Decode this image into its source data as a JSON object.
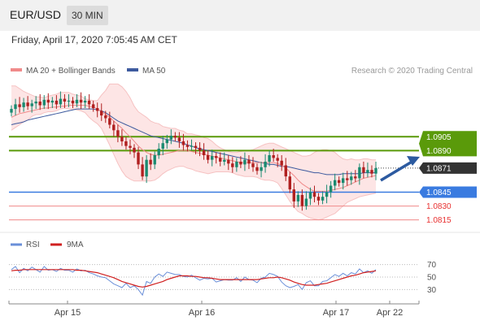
{
  "header": {
    "pair": "EUR/USD",
    "timeframe": "30 MIN"
  },
  "datetime": "Friday, April 17, 2020 7:05:45 AM CET",
  "legend_main": {
    "ma20": "MA 20 + Bollinger Bands",
    "ma50": "MA 50"
  },
  "credit": "Research © 2020 Trading Central",
  "legend_rsi": {
    "rsi": "RSI",
    "ma": "9MA"
  },
  "colors": {
    "resistance": "#5a9a0a",
    "support": "#3a7be0",
    "target": "#e83030",
    "price_tag": "#333333",
    "bollinger": "#fbd0d0",
    "ma20": "#f08a8a",
    "ma50": "#3d5a9e",
    "up": "#1a8a70",
    "down": "#b02020",
    "rsi": "#6a8fd8",
    "rsi_ma": "#d02020",
    "arrow": "#2c5aa0"
  },
  "chart_data": [
    {
      "type": "candlestick",
      "xlabel": "",
      "ylabel": "",
      "x_ticks": [
        "Apr 15",
        "Apr 16",
        "Apr 17",
        "Apr 22"
      ],
      "y_range": [
        1.0805,
        1.0965
      ],
      "close": [
        1.0935,
        1.094,
        1.0937,
        1.0942,
        1.0938,
        1.0941,
        1.0943,
        1.0939,
        1.0945,
        1.0942,
        1.0944,
        1.094,
        1.0946,
        1.0943,
        1.0944,
        1.0941,
        1.0945,
        1.0942,
        1.0944,
        1.094,
        1.0936,
        1.0933,
        1.0928,
        1.0925,
        1.0918,
        1.0912,
        1.0905,
        1.09,
        1.0895,
        1.0893,
        1.0888,
        1.0875,
        1.0862,
        1.088,
        1.0875,
        1.0885,
        1.0892,
        1.0898,
        1.0902,
        1.0906,
        1.0904,
        1.09,
        1.0896,
        1.0894,
        1.0895,
        1.0893,
        1.089,
        1.0885,
        1.088,
        1.0884,
        1.0882,
        1.0878,
        1.088,
        1.0876,
        1.0872,
        1.0878,
        1.0875,
        1.088,
        1.0876,
        1.0872,
        1.0868,
        1.0872,
        1.0878,
        1.0885,
        1.0882,
        1.0879,
        1.0874,
        1.0862,
        1.0848,
        1.0835,
        1.0842,
        1.083,
        1.0838,
        1.0845,
        1.084,
        1.0836,
        1.084,
        1.0845,
        1.0852,
        1.0858,
        1.0855,
        1.086,
        1.0858,
        1.0862,
        1.086,
        1.0872,
        1.0866,
        1.0869,
        1.0865,
        1.0871
      ],
      "indicators": {
        "bollinger_upper": [
          1.096,
          1.096,
          1.0957,
          1.0954,
          1.0952,
          1.095,
          1.0948,
          1.0948,
          1.0947,
          1.0949,
          1.095,
          1.0951,
          1.0953,
          1.0953,
          1.0953,
          1.0951,
          1.095,
          1.0949,
          1.0946,
          1.0945,
          1.0944,
          1.0944,
          1.095,
          1.0955,
          1.0962,
          1.0962,
          1.0962,
          1.0959,
          1.0954,
          1.0947,
          1.0938,
          1.0932,
          1.0929,
          1.0926,
          1.0922,
          1.092,
          1.0919,
          1.0916,
          1.0915,
          1.0914,
          1.0914,
          1.0912,
          1.0911,
          1.0908,
          1.0908,
          1.0907,
          1.0906,
          1.0904,
          1.0903,
          1.09,
          1.0896,
          1.0893,
          1.0891,
          1.0889,
          1.0888,
          1.0888,
          1.0889,
          1.089,
          1.089,
          1.0891,
          1.0893,
          1.0895,
          1.0897,
          1.0898,
          1.0898,
          1.0896,
          1.0894,
          1.0892,
          1.089,
          1.0888,
          1.0886,
          1.0884,
          1.0884,
          1.0885,
          1.0888,
          1.089,
          1.0891,
          1.0891,
          1.089,
          1.0888,
          1.0884,
          1.0881,
          1.088,
          1.0881,
          1.088,
          1.088,
          1.0881,
          1.0881,
          1.088,
          1.088
        ],
        "bollinger_lower": [
          1.0912,
          1.0915,
          1.0918,
          1.0921,
          1.0923,
          1.0927,
          1.0929,
          1.0929,
          1.0931,
          1.0932,
          1.0932,
          1.0933,
          1.0935,
          1.0936,
          1.0935,
          1.0935,
          1.0934,
          1.0933,
          1.0931,
          1.0926,
          1.0922,
          1.0919,
          1.0914,
          1.0905,
          1.0896,
          1.0886,
          1.0876,
          1.0868,
          1.0862,
          1.0859,
          1.0857,
          1.0857,
          1.0857,
          1.0857,
          1.0857,
          1.0858,
          1.0861,
          1.0865,
          1.0868,
          1.087,
          1.0872,
          1.0873,
          1.0873,
          1.0871,
          1.087,
          1.0868,
          1.0867,
          1.0866,
          1.0865,
          1.0866,
          1.0867,
          1.0867,
          1.0867,
          1.0867,
          1.0866,
          1.0864,
          1.0863,
          1.0862,
          1.0862,
          1.0862,
          1.0861,
          1.0859,
          1.0858,
          1.0858,
          1.0857,
          1.0855,
          1.0849,
          1.0842,
          1.0835,
          1.0829,
          1.0824,
          1.0822,
          1.0819,
          1.0817,
          1.0816,
          1.0815,
          1.0816,
          1.0818,
          1.082,
          1.0822,
          1.0826,
          1.083,
          1.0834,
          1.0836,
          1.0838,
          1.084,
          1.0841,
          1.0842,
          1.0843,
          1.0844
        ],
        "ma20": [
          1.0926,
          1.0928,
          1.093,
          1.0931,
          1.0932,
          1.0933,
          1.0934,
          1.0935,
          1.0936,
          1.0936,
          1.0937,
          1.0937,
          1.0938,
          1.0938,
          1.0939,
          1.0939,
          1.0939,
          1.0939,
          1.0939,
          1.0938,
          1.0937,
          1.0935,
          1.0932,
          1.0929,
          1.0926,
          1.0922,
          1.0918,
          1.0914,
          1.0909,
          1.0905,
          1.09,
          1.0895,
          1.0891,
          1.0888,
          1.0886,
          1.0885,
          1.0885,
          1.0886,
          1.0887,
          1.0888,
          1.0889,
          1.089,
          1.089,
          1.089,
          1.0889,
          1.0888,
          1.0887,
          1.0886,
          1.0885,
          1.0884,
          1.0883,
          1.0882,
          1.0881,
          1.088,
          1.0879,
          1.0878,
          1.0877,
          1.0877,
          1.0877,
          1.0877,
          1.0877,
          1.0877,
          1.0877,
          1.0877,
          1.0877,
          1.0876,
          1.0874,
          1.0871,
          1.0867,
          1.0863,
          1.0858,
          1.0854,
          1.0851,
          1.0848,
          1.0846,
          1.0846,
          1.0846,
          1.0846,
          1.0847,
          1.0848,
          1.0849,
          1.085,
          1.0852,
          1.0854,
          1.0856,
          1.0858,
          1.086,
          1.0861,
          1.0862,
          1.0863
        ],
        "ma50": [
          1.0918,
          1.0919,
          1.092,
          1.0921,
          1.0923,
          1.0924,
          1.0925,
          1.0926,
          1.0927,
          1.0928,
          1.0929,
          1.093,
          1.0931,
          1.0932,
          1.0933,
          1.0934,
          1.0935,
          1.0935,
          1.0935,
          1.0935,
          1.0935,
          1.0934,
          1.0933,
          1.0931,
          1.0928,
          1.0925,
          1.0922,
          1.092,
          1.0918,
          1.0916,
          1.0914,
          1.0912,
          1.091,
          1.0908,
          1.0906,
          1.0905,
          1.0904,
          1.0903,
          1.0902,
          1.0901,
          1.09,
          1.0899,
          1.0898,
          1.0896,
          1.0895,
          1.0893,
          1.0892,
          1.0891,
          1.089,
          1.0889,
          1.0888,
          1.0887,
          1.0886,
          1.0885,
          1.0884,
          1.0883,
          1.0882,
          1.0881,
          1.088,
          1.0879,
          1.0878,
          1.0877,
          1.0876,
          1.0875,
          1.0875,
          1.0874,
          1.0873,
          1.0873,
          1.0872,
          1.0871,
          1.087,
          1.0869,
          1.0868,
          1.0867,
          1.0866,
          1.0866,
          1.0865,
          1.0864,
          1.0864,
          1.0864,
          1.0864,
          1.0865,
          1.0865,
          1.0865,
          1.0865,
          1.0865,
          1.0866,
          1.0866,
          1.0866,
          1.0866
        ]
      },
      "levels": {
        "resistance": [
          1.0905,
          1.089
        ],
        "support": [
          1.0845
        ],
        "targets": [
          1.083,
          1.0815
        ],
        "current": 1.0871
      },
      "level_labels": {
        "r1": "1.0905",
        "r2": "1.0890",
        "price": "1.0871",
        "s1": "1.0845",
        "t1": "1.0830",
        "t2": "1.0815"
      }
    },
    {
      "type": "line",
      "xlabel": "",
      "ylabel": "",
      "y_ticks": [
        "70",
        "50",
        "30"
      ],
      "ylim": [
        20,
        80
      ],
      "series": [
        {
          "name": "RSI",
          "values": [
            62,
            67,
            57,
            64,
            60,
            66,
            62,
            58,
            67,
            61,
            62,
            59,
            64,
            61,
            61,
            58,
            63,
            60,
            61,
            57,
            55,
            52,
            50,
            49,
            44,
            39,
            36,
            33,
            40,
            33,
            36,
            30,
            21,
            43,
            40,
            50,
            55,
            51,
            58,
            56,
            54,
            54,
            51,
            50,
            53,
            49,
            45,
            48,
            47,
            48,
            42,
            44,
            46,
            45,
            45,
            49,
            43,
            50,
            46,
            45,
            41,
            48,
            50,
            56,
            54,
            51,
            42,
            36,
            33,
            35,
            38,
            30,
            41,
            44,
            36,
            36,
            43,
            44,
            49,
            54,
            51,
            56,
            52,
            57,
            55,
            63,
            57,
            60,
            56,
            62
          ]
        },
        {
          "name": "9MA",
          "values": [
            60,
            61,
            61,
            62,
            62,
            62,
            62,
            62,
            62,
            62,
            62,
            62,
            62,
            62,
            62,
            62,
            61,
            61,
            60,
            59,
            58,
            57,
            55,
            53,
            51,
            49,
            46,
            43,
            41,
            39,
            37,
            35,
            34,
            35,
            37,
            39,
            41,
            43,
            46,
            48,
            50,
            52,
            52,
            52,
            51,
            51,
            50,
            49,
            49,
            48,
            47,
            46,
            46,
            46,
            46,
            46,
            46,
            46,
            46,
            46,
            46,
            47,
            48,
            49,
            49,
            50,
            49,
            47,
            45,
            42,
            40,
            38,
            37,
            37,
            37,
            38,
            39,
            40,
            42,
            44,
            46,
            48,
            50,
            52,
            53,
            55,
            57,
            58,
            59,
            60
          ]
        }
      ]
    }
  ]
}
